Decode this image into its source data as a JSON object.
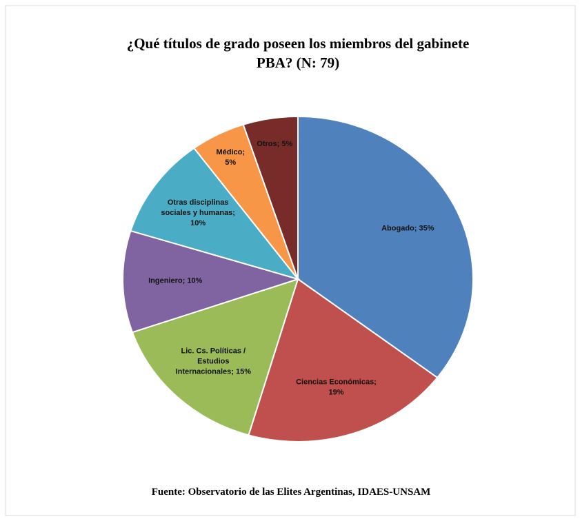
{
  "chart_data": {
    "type": "pie",
    "title": [
      "¿Qué títulos de grado poseen los miembros del gabinete",
      "PBA? (N: 79)"
    ],
    "values": [
      35,
      19,
      15,
      10,
      10,
      5,
      5
    ],
    "value_labels": [
      [
        "Abogado; 35%"
      ],
      [
        "Ciencias Económicas;",
        "19%"
      ],
      [
        "Lic. Cs. Políticas /",
        "Estudios",
        "Internacionales; 15%"
      ],
      [
        "Ingeniero; 10%"
      ],
      [
        "Otras disciplinas",
        "sociales y humanas;",
        "10%"
      ],
      [
        "Médico;",
        "5%"
      ],
      [
        "Otros; 5%"
      ]
    ],
    "colors": [
      "#4f81bd",
      "#c0504d",
      "#9bbb59",
      "#8064a2",
      "#4bacc6",
      "#f79646",
      "#772c2a"
    ],
    "source": "Fuente: Observatorio de las Elites Argentinas, IDAES-UNSAM"
  }
}
